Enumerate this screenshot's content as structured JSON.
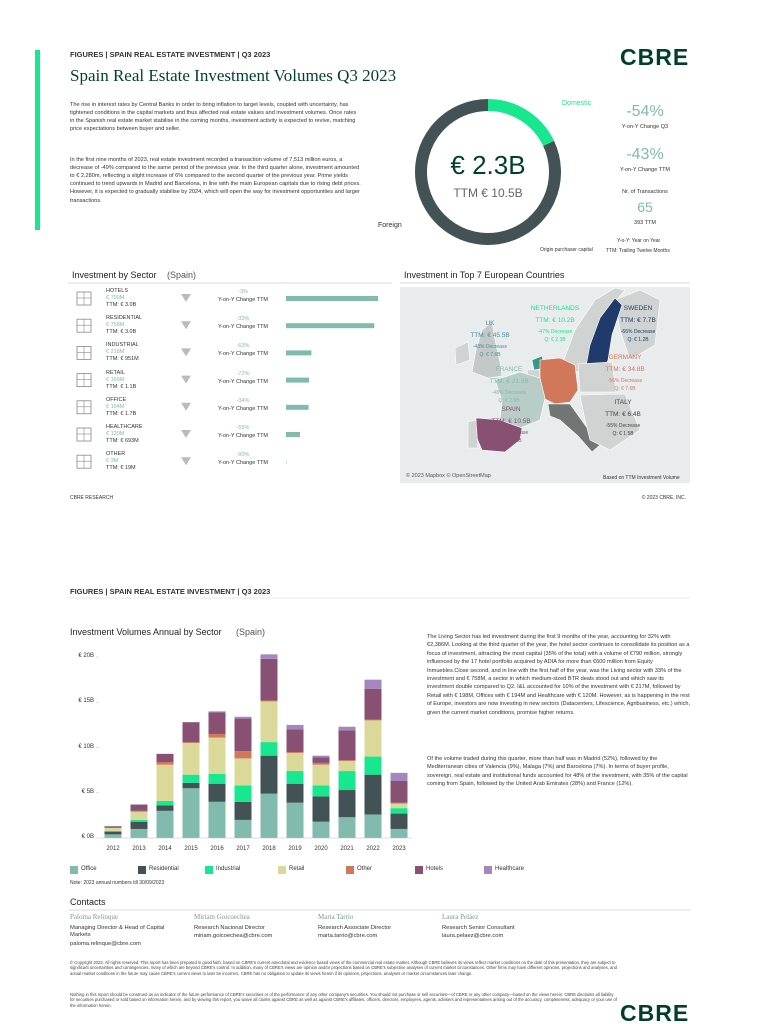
{
  "page1": {
    "header": "FIGURES | SPAIN REAL ESTATE INVESTMENT | Q3 2023",
    "title": "Spain Real Estate Investment Volumes Q3 2023",
    "logo": "CBRE",
    "paragraphs": [
      "The rise in interest rates by Central Banks in order to bring inflation to target levels, coupled with uncertainty, has tightened conditions in the capital markets and thus affected real estate values and investment volumes. Once rates in the Spanish real estate market stabilise in the coming months, investment activity is expected to revive, matching price expectations between buyer and seller.",
      "In the first nine months of 2023, real estate investment recorded a transaction volume of 7,513 million euros, a decrease of -49% compared to the same period of the previous year. In the third quarter alone, investment amounted to € 2,280m, reflecting a slight increase of 6% compared to the second quarter of the previous year. Prime yields continued to trend upwards in Madrid and Barcelona, in line with the main European capitals due to rising debt prices. However, it is expected to gradually stabilise by 2024, which will open the way for investment opportunities and larger transactions."
    ],
    "donut": {
      "segments": [
        {
          "name": "Domestic",
          "value": 18
        },
        {
          "name": "Foreign",
          "value": 82
        }
      ],
      "center_value": "€ 2.3B",
      "center_caption": "TTM € 10.5B",
      "caption": "Origin purchaser capital"
    },
    "kpis": [
      {
        "value": "-54%",
        "caption": "Y-on-Y Change Q3"
      },
      {
        "value": "-43%",
        "caption": "Y-on-Y Change TTM"
      },
      {
        "caption": "Nr. of Transactions",
        "value": "65",
        "sub": "393 TTM"
      }
    ],
    "notes": [
      "Y-o-Y: Year on Year",
      "TTM: Trailing Twelve Months"
    ],
    "sector_chart": {
      "title": "Investment by Sector",
      "title_suffix": "(Spain)",
      "rows": [
        {
          "name": "HOTELS",
          "value": 790,
          "value_label": "€ 790M",
          "ttm": "TTM: € 3.0B",
          "change": "-3%",
          "change_caption": "Y-on-Y Change TTM"
        },
        {
          "name": "RESIDENTIAL",
          "value": 758,
          "value_label": "€ 758M",
          "ttm": "TTM: € 3.0B",
          "change": "-33%",
          "change_caption": "Y-on-Y Change TTM"
        },
        {
          "name": "INDUSTRIAL",
          "value": 218,
          "value_label": "€ 218M",
          "ttm": "TTM: € 951M",
          "change": "-63%",
          "change_caption": "Y-on-Y Change TTM"
        },
        {
          "name": "RETAIL",
          "value": 199,
          "value_label": "€ 199M",
          "ttm": "TTM: € 1.1B",
          "change": "-72%",
          "change_caption": "Y-on-Y Change TTM"
        },
        {
          "name": "OFFICE",
          "value": 194,
          "value_label": "€ 194M",
          "ttm": "TTM: € 1.7B",
          "change": "-34%",
          "change_caption": "Y-on-Y Change TTM"
        },
        {
          "name": "HEALTHCARE",
          "value": 120,
          "value_label": "€ 120M",
          "ttm": "TTM: € 693M",
          "change": "-55%",
          "change_caption": "Y-on-Y Change TTM"
        },
        {
          "name": "OTHER",
          "value": 3,
          "value_label": "€ 3M",
          "ttm": "TTM: € 19M",
          "change": "-90%",
          "change_caption": "Y-on-Y Change TTM"
        }
      ]
    },
    "map": {
      "title": "Investment in Top 7 European Countries",
      "countries": [
        {
          "name": "UK",
          "ttm": "TTM: € 45.5B",
          "change": "-48% Decrease",
          "quarter": "Q: € 7.6B"
        },
        {
          "name": "NETHERLANDS",
          "ttm": "TTM: € 10.2B",
          "change": "-47% Decrease",
          "quarter": "Q: € 2.3B"
        },
        {
          "name": "SWEDEN",
          "ttm": "TTM: € 7.7B",
          "change": "-66% Decrease",
          "quarter": "Q: € 1.2B"
        },
        {
          "name": "GERMANY",
          "ttm": "TTM: € 34.8B",
          "change": "-56% Decrease",
          "quarter": "Q: € 7.6B"
        },
        {
          "name": "FRANCE",
          "ttm": "TTM: € 21.3B",
          "change": "-48% Decrease",
          "quarter": "Q: € 2.9B"
        },
        {
          "name": "SPAIN",
          "ttm": "TTM: € 10.5B",
          "change": "-43% Decrease",
          "quarter": "Q: € 2.3B"
        },
        {
          "name": "ITALY",
          "ttm": "TTM: € 6.4B",
          "change": "-55% Decrease",
          "quarter": "Q: € 1.5B"
        }
      ],
      "attribution": "© 2023 Mapbox © OpenStreetMap",
      "note": "Based on TTM Investment Volume"
    },
    "footer": {
      "left": "CBRE RESEARCH",
      "right": "© 2023 CBRE, INC."
    }
  },
  "page2": {
    "annual_chart": {
      "type": "bar",
      "stacked": true,
      "title": "Investment Volumes Annual by Sector",
      "title_suffix": "(Spain)",
      "categories": [
        "2012",
        "2013",
        "2014",
        "2015",
        "2016",
        "2017",
        "2018",
        "2019",
        "2020",
        "2021",
        "2022",
        "2023"
      ],
      "series": [
        {
          "name": "Office",
          "color": "#80bbad",
          "values": [
            0.4,
            1.0,
            3.0,
            5.5,
            4.0,
            2.0,
            4.9,
            3.9,
            1.8,
            2.3,
            2.6,
            1.0
          ]
        },
        {
          "name": "Residential",
          "color": "#435254",
          "values": [
            0.3,
            0.8,
            0.6,
            0.6,
            2.0,
            2.0,
            4.2,
            2.1,
            2.8,
            3.0,
            4.4,
            1.7
          ]
        },
        {
          "name": "Industrial",
          "color": "#17e88f",
          "values": [
            0.1,
            0.2,
            0.5,
            0.9,
            1.1,
            1.8,
            1.5,
            1.4,
            1.2,
            2.1,
            2.0,
            0.6
          ]
        },
        {
          "name": "Retail",
          "color": "#dbd99a",
          "values": [
            0.3,
            0.9,
            4.0,
            3.5,
            4.0,
            3.0,
            4.5,
            2.0,
            2.3,
            1.1,
            4.0,
            0.5
          ]
        },
        {
          "name": "Other",
          "color": "#d2785a",
          "values": [
            0.05,
            0.1,
            0.3,
            0.1,
            0.4,
            0.8,
            0.1,
            0.1,
            0.2,
            0.1,
            0.1,
            0.1
          ]
        },
        {
          "name": "Hotels",
          "color": "#885073",
          "values": [
            0.15,
            0.7,
            0.9,
            2.2,
            2.4,
            3.6,
            4.6,
            2.5,
            0.6,
            3.3,
            3.4,
            2.4
          ]
        },
        {
          "name": "Healthcare",
          "color": "#a388bf",
          "values": [
            0,
            0,
            0,
            0,
            0.1,
            0.2,
            0.5,
            0.5,
            0.2,
            0.4,
            1.0,
            0.9
          ]
        }
      ],
      "ylim": [
        0,
        21
      ],
      "yticks": [
        {
          "value": 0,
          "label": "€ 0B"
        },
        {
          "value": 5,
          "label": "€ 5B"
        },
        {
          "value": 10,
          "label": "€ 10B"
        },
        {
          "value": 15,
          "label": "€ 15B"
        },
        {
          "value": 20,
          "label": "€ 20B"
        }
      ],
      "note": "Note: 2023 annual numbers till 30/09/2023"
    },
    "paragraphs": [
      "The Living Sector has led investment during the first 9 months of the year, accounting for 32% with €2,386M. Looking at the third quarter of the year, the hotel sector continues to consolidate its position as a focus of investment, attracting the most capital (35% of the total) with a volume of €790 million, strongly influenced by the 17 hotel portfolio acquired by ADIA for more than €600 million from Equity Inmuebles.Close second, and in line with the first half of the year, was the Living sector with 33% of the investment and € 758M, a sector in which medium-sized BTR deals stood out and which saw its investment double compared to Q2. I&L accounted for 10% of the investment with € 217M, followed by Retail with € 198M, Offices with € 194M and Healthcare with € 120M. However, as is happening in the rest of Europe, investors are now investing in new sectors (Datacenters, Lifescience, Agribusiness, etc.) which, given the current market conditions, promise higher returns.",
      "Of the volume traded during this quarter, more than half was in Madrid (52%), followed by the Mediterranean cities of Valencia (9%), Malaga (7%) and Barcelona (7%). In terms of buyer profile, sovereign, real estate and institutional funds accounted for 48% of the investment, with 35% of the capital coming from Spain, followed by the United Arab Emirates (28%) and France (12%)."
    ],
    "contacts": {
      "title": "Contacts",
      "people": [
        {
          "name": "Paloma Relinque",
          "role": "Managing Director & Head of Capital Markets",
          "email": "paloma.relinque@cbre.com"
        },
        {
          "name": "Miriam Goicoechea",
          "role": "Research Nacional Director",
          "email": "miriam.goicoechea@cbre.com"
        },
        {
          "name": "Marta Tarrío",
          "role": "Research Associate Director",
          "email": "marta.tarrio@cbre.com"
        },
        {
          "name": "Laura Peláez",
          "role": "Research Senior Consultant",
          "email": "laura.pelaez@cbre.com"
        }
      ]
    },
    "disclaimer": [
      "© Copyright 2023. All rights reserved. This report has been prepared in good faith, based on CBRE's current anecdotal and evidence based views of the commercial real estate market. Although CBRE believes its views reflect market conditions on the date of this presentation, they are subject to significant uncertainties and contingencies, many of which are beyond CBRE's control. In addition, many of CBRE's views are opinion and/or projections based on CBRE's subjective analyses of current market circumstances. Other firms may have different opinions, projections and analyses, and actual market conditions in the future may cause CBRE's current views to later be incorrect. CBRE has no obligation to update its views herein if its opinions, projections, analyses or market circumstances later change.",
      "Nothing in this report should be construed as an indicator of the future performance of CBRE's securities or of the performance of any other company's securities. You should not purchase or sell securities—of CBRE or any other company—based on the views herein. CBRE disclaims all liability for securities purchased or sold based on information herein, and by viewing this report, you waive all claims against CBRE as well as against CBRE's affiliates, officers, directors, employees, agents, advisers and representatives arising out of the accuracy, completeness, adequacy or your use of the information herein."
    ]
  }
}
